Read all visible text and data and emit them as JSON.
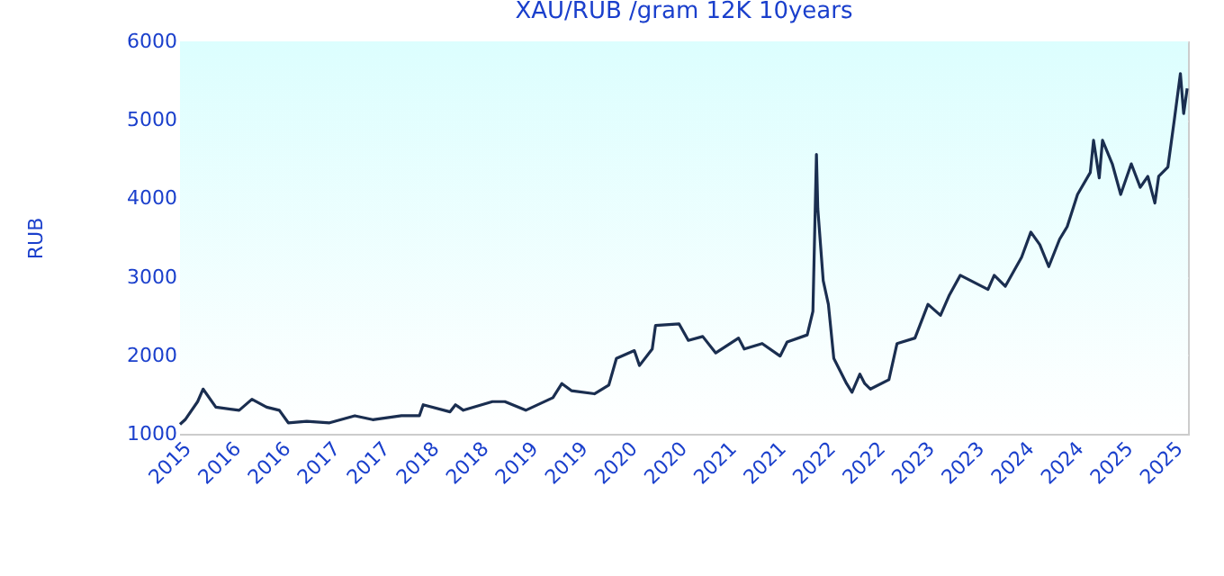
{
  "chart_data": {
    "type": "line",
    "title": "XAU/RUB /gram 12K 10years",
    "ylabel": "RUB",
    "x": [
      "2015-10-01",
      "2015-10-20",
      "2015-12-05",
      "2015-12-25",
      "2016-02-10",
      "2016-05-06",
      "2016-06-22",
      "2016-08-15",
      "2016-10-01",
      "2016-11-03",
      "2017-01-10",
      "2017-04-04",
      "2017-07-06",
      "2017-09-10",
      "2017-12-25",
      "2018-03-01",
      "2018-03-15",
      "2018-06-22",
      "2018-07-12",
      "2018-08-10",
      "2018-11-25",
      "2019-01-10",
      "2019-03-28",
      "2019-07-06",
      "2019-08-08",
      "2019-09-12",
      "2019-12-06",
      "2020-01-28",
      "2020-02-25",
      "2020-05-01",
      "2020-05-20",
      "2020-07-06",
      "2020-07-18",
      "2020-10-13",
      "2020-11-16",
      "2021-01-08",
      "2021-02-25",
      "2021-05-20",
      "2021-06-10",
      "2021-08-15",
      "2021-10-20",
      "2021-11-15",
      "2022-01-28",
      "2022-02-18",
      "2022-03-03",
      "2022-03-08",
      "2022-03-28",
      "2022-04-16",
      "2022-05-06",
      "2022-06-22",
      "2022-07-12",
      "2022-08-10",
      "2022-08-28",
      "2022-09-18",
      "2022-11-25",
      "2022-12-25",
      "2023-03-01",
      "2023-04-18",
      "2023-06-03",
      "2023-07-06",
      "2023-08-15",
      "2023-11-25",
      "2023-12-18",
      "2024-01-28",
      "2024-03-28",
      "2024-05-01",
      "2024-06-03",
      "2024-07-06",
      "2024-08-15",
      "2024-09-12",
      "2024-10-20",
      "2024-12-06",
      "2024-12-18",
      "2025-01-08",
      "2025-01-20",
      "2025-02-25",
      "2025-03-28",
      "2025-05-06",
      "2025-06-08",
      "2025-07-06",
      "2025-08-01",
      "2025-08-15",
      "2025-09-18",
      "2025-10-12",
      "2025-11-03",
      "2025-11-15",
      "2025-11-28"
    ],
    "series": [
      {
        "color": "#1a2e50",
        "values": [
          1120,
          1180,
          1410,
          1570,
          1340,
          1300,
          1440,
          1340,
          1300,
          1140,
          1160,
          1140,
          1230,
          1180,
          1230,
          1230,
          1370,
          1280,
          1370,
          1300,
          1410,
          1410,
          1300,
          1460,
          1640,
          1550,
          1510,
          1620,
          1960,
          2060,
          1870,
          2080,
          2380,
          2400,
          2190,
          2240,
          2030,
          2220,
          2080,
          2150,
          1990,
          2170,
          2260,
          2560,
          4560,
          3870,
          2950,
          2650,
          1960,
          1640,
          1530,
          1760,
          1640,
          1570,
          1690,
          2150,
          2220,
          2650,
          2510,
          2770,
          3020,
          2840,
          3020,
          2880,
          3250,
          3570,
          3410,
          3130,
          3480,
          3640,
          4050,
          4330,
          4740,
          4260,
          4740,
          4440,
          4050,
          4440,
          4140,
          4280,
          3940,
          4280,
          4400,
          5010,
          5590,
          5080,
          5400
        ]
      }
    ],
    "xlim": [
      "2015-10-01",
      "2025-12-01"
    ],
    "xticks": [
      {
        "value": "2015-10-01",
        "label": "2015"
      },
      {
        "value": "2016-04-01",
        "label": "2016"
      },
      {
        "value": "2016-10-01",
        "label": "2016"
      },
      {
        "value": "2017-04-01",
        "label": "2017"
      },
      {
        "value": "2017-10-01",
        "label": "2017"
      },
      {
        "value": "2018-04-01",
        "label": "2018"
      },
      {
        "value": "2018-10-01",
        "label": "2018"
      },
      {
        "value": "2019-04-01",
        "label": "2019"
      },
      {
        "value": "2019-10-01",
        "label": "2019"
      },
      {
        "value": "2020-04-01",
        "label": "2020"
      },
      {
        "value": "2020-10-01",
        "label": "2020"
      },
      {
        "value": "2021-04-01",
        "label": "2021"
      },
      {
        "value": "2021-10-01",
        "label": "2021"
      },
      {
        "value": "2022-04-01",
        "label": "2022"
      },
      {
        "value": "2022-10-01",
        "label": "2022"
      },
      {
        "value": "2023-04-01",
        "label": "2023"
      },
      {
        "value": "2023-10-01",
        "label": "2023"
      },
      {
        "value": "2024-04-01",
        "label": "2024"
      },
      {
        "value": "2024-10-01",
        "label": "2024"
      },
      {
        "value": "2025-04-01",
        "label": "2025"
      },
      {
        "value": "2025-10-01",
        "label": "2025"
      }
    ],
    "ylim": [
      1000,
      6000
    ],
    "yticks": [
      1000,
      2000,
      3000,
      4000,
      5000,
      6000
    ],
    "grid": "y",
    "marker": "none",
    "line_style": "solid"
  }
}
